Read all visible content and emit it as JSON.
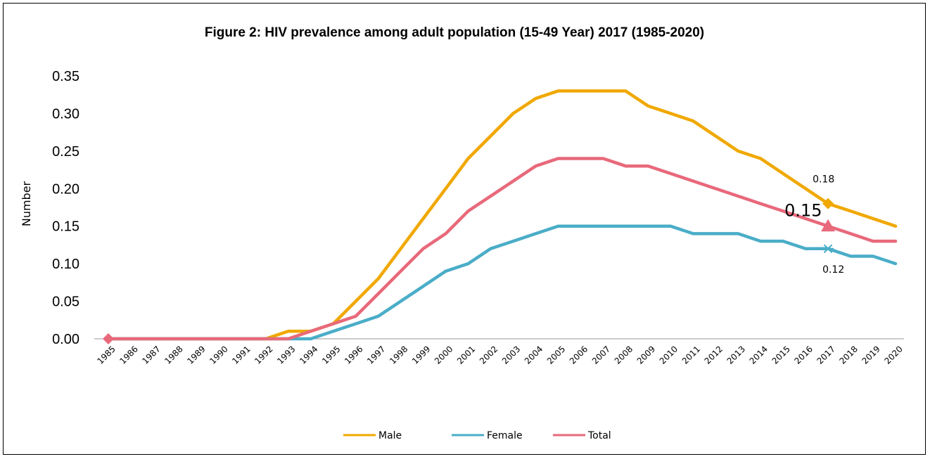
{
  "chart_data": {
    "type": "line",
    "title": "Figure 2: HIV prevalence among adult population (15-49 Year) 2017  (1985-2020)",
    "ylabel": "Number",
    "xlabel": "",
    "ylim": [
      0,
      0.35
    ],
    "yticks": [
      "0.00",
      "0.05",
      "0.10",
      "0.15",
      "0.20",
      "0.25",
      "0.30",
      "0.35"
    ],
    "categories": [
      "1985",
      "1986",
      "1987",
      "1988",
      "1989",
      "1990",
      "1991",
      "1992",
      "1993",
      "1994",
      "1995",
      "1996",
      "1997",
      "1998",
      "1999",
      "2000",
      "2001",
      "2002",
      "2003",
      "2004",
      "2005",
      "2006",
      "2007",
      "2008",
      "2009",
      "2010",
      "2011",
      "2012",
      "2013",
      "2014",
      "2015",
      "2016",
      "2017",
      "2018",
      "2019",
      "2020"
    ],
    "series": [
      {
        "name": "Male",
        "color": "#f0a800",
        "values": [
          0,
          0,
          0,
          0,
          0,
          0,
          0,
          0,
          0.01,
          0.01,
          0.02,
          0.05,
          0.08,
          0.12,
          0.16,
          0.2,
          0.24,
          0.27,
          0.3,
          0.32,
          0.33,
          0.33,
          0.33,
          0.33,
          0.31,
          0.3,
          0.29,
          0.27,
          0.25,
          0.24,
          0.22,
          0.2,
          0.18,
          0.17,
          0.16,
          0.15
        ]
      },
      {
        "name": "Female",
        "color": "#4aadc8",
        "values": [
          0,
          0,
          0,
          0,
          0,
          0,
          0,
          0,
          0,
          0,
          0.01,
          0.02,
          0.03,
          0.05,
          0.07,
          0.09,
          0.1,
          0.12,
          0.13,
          0.14,
          0.15,
          0.15,
          0.15,
          0.15,
          0.15,
          0.15,
          0.14,
          0.14,
          0.14,
          0.13,
          0.13,
          0.12,
          0.12,
          0.11,
          0.11,
          0.1
        ]
      },
      {
        "name": "Total",
        "color": "#e8697a",
        "values": [
          0,
          0,
          0,
          0,
          0,
          0,
          0,
          0,
          0,
          0.01,
          0.02,
          0.03,
          0.06,
          0.09,
          0.12,
          0.14,
          0.17,
          0.19,
          0.21,
          0.23,
          0.24,
          0.24,
          0.24,
          0.23,
          0.23,
          0.22,
          0.21,
          0.2,
          0.19,
          0.18,
          0.17,
          0.16,
          0.15,
          0.14,
          0.13,
          0.13
        ]
      }
    ],
    "annotations": [
      {
        "series": "Male",
        "category": "2017",
        "label": "0.18",
        "marker": "diamond"
      },
      {
        "series": "Total",
        "category": "2017",
        "label": "0.15",
        "marker": "triangle"
      },
      {
        "series": "Female",
        "category": "2017",
        "label": "0.12",
        "marker": "star"
      },
      {
        "series": "Total",
        "category": "1985",
        "label": "",
        "marker": "diamond"
      }
    ],
    "grid": false,
    "legend_position": "bottom"
  }
}
